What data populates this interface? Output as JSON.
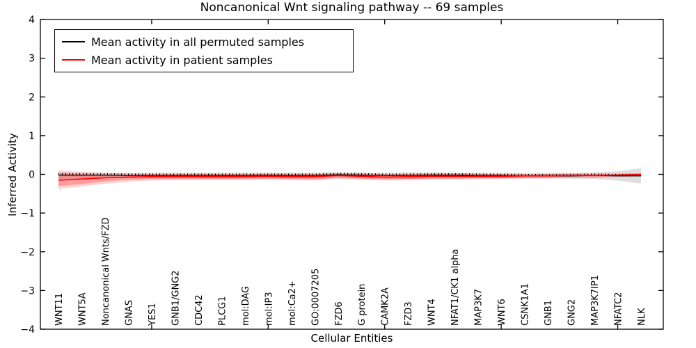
{
  "figure": {
    "title": "Noncanonical Wnt signaling pathway -- 69 samples",
    "xlabel": "Cellular Entities",
    "ylabel": "Inferred Activity"
  },
  "chart_data": {
    "type": "line",
    "title": "Noncanonical Wnt signaling pathway -- 69 samples",
    "xlabel": "Cellular Entities",
    "ylabel": "Inferred Activity",
    "ylim": [
      -4,
      4
    ],
    "yticks": [
      4,
      3,
      2,
      1,
      0,
      -1,
      -2,
      -3,
      -4
    ],
    "x_major_tick_indices": [
      4,
      9,
      14,
      19,
      24
    ],
    "grid": false,
    "legend_position": "upper left",
    "categories": [
      "WNT11",
      "WNT5A",
      "Noncanonical Wnts/FZD",
      "GNAS",
      "YES1",
      "GNB1/GNG2",
      "CDC42",
      "PLCG1",
      "mol:DAG",
      "mol:IP3",
      "mol:Ca2+",
      "GO:0007205",
      "FZD6",
      "G protein",
      "CAMK2A",
      "FZD3",
      "WNT4",
      "NFAT1/CK1 alpha",
      "MAP3K7",
      "WNT6",
      "CSNK1A1",
      "GNB1",
      "GNG2",
      "MAP3K7IP1",
      "NFATC2",
      "NLK"
    ],
    "series": [
      {
        "name": "Mean activity in all permuted samples",
        "color": "#000000",
        "values": [
          -0.02,
          -0.02,
          -0.02,
          -0.03,
          -0.03,
          -0.03,
          -0.03,
          -0.03,
          -0.03,
          -0.03,
          -0.03,
          -0.03,
          -0.01,
          -0.02,
          -0.03,
          -0.03,
          -0.02,
          -0.02,
          -0.03,
          -0.03,
          -0.04,
          -0.04,
          -0.04,
          -0.03,
          -0.04,
          -0.04
        ]
      },
      {
        "name": "Mean activity in patient samples",
        "color": "#ff0000",
        "values": [
          -0.15,
          -0.12,
          -0.09,
          -0.07,
          -0.06,
          -0.06,
          -0.06,
          -0.06,
          -0.06,
          -0.05,
          -0.06,
          -0.06,
          -0.03,
          -0.05,
          -0.07,
          -0.06,
          -0.05,
          -0.05,
          -0.05,
          -0.05,
          -0.04,
          -0.04,
          -0.03,
          -0.03,
          -0.02,
          0.0
        ]
      }
    ],
    "bands": [
      {
        "name": "permuted-band",
        "color": "#999999",
        "opacity": 0.32,
        "upper": [
          0.05,
          0.04,
          0.04,
          0.04,
          0.04,
          0.04,
          0.04,
          0.04,
          0.04,
          0.04,
          0.04,
          0.04,
          0.05,
          0.05,
          0.04,
          0.05,
          0.05,
          0.04,
          0.04,
          0.03,
          0.03,
          0.04,
          0.04,
          0.05,
          0.08,
          0.16
        ],
        "lower": [
          -0.11,
          -0.1,
          -0.09,
          -0.09,
          -0.09,
          -0.09,
          -0.09,
          -0.1,
          -0.09,
          -0.1,
          -0.1,
          -0.1,
          -0.09,
          -0.1,
          -0.11,
          -0.12,
          -0.1,
          -0.09,
          -0.1,
          -0.1,
          -0.1,
          -0.11,
          -0.11,
          -0.12,
          -0.16,
          -0.24
        ]
      },
      {
        "name": "patient-band-outer",
        "color": "#ff0000",
        "opacity": 0.18,
        "upper": [
          0.1,
          0.06,
          0.03,
          0.02,
          0.02,
          0.02,
          0.02,
          0.02,
          0.02,
          0.03,
          0.02,
          0.02,
          0.04,
          0.03,
          0.01,
          0.02,
          0.03,
          0.03,
          0.02,
          0.02,
          0.01,
          0.01,
          0.02,
          0.02,
          0.02,
          0.03
        ],
        "lower": [
          -0.38,
          -0.31,
          -0.24,
          -0.19,
          -0.16,
          -0.15,
          -0.15,
          -0.15,
          -0.15,
          -0.14,
          -0.15,
          -0.16,
          -0.12,
          -0.14,
          -0.16,
          -0.15,
          -0.14,
          -0.14,
          -0.13,
          -0.12,
          -0.11,
          -0.1,
          -0.09,
          -0.09,
          -0.07,
          -0.05
        ]
      },
      {
        "name": "patient-band-inner",
        "color": "#ff0000",
        "opacity": 0.25,
        "upper": [
          0.02,
          0.0,
          -0.01,
          -0.01,
          0.0,
          0.0,
          0.0,
          0.0,
          0.0,
          0.01,
          0.0,
          0.0,
          0.02,
          0.01,
          -0.01,
          0.0,
          0.01,
          0.01,
          0.0,
          0.0,
          0.0,
          0.0,
          0.01,
          0.01,
          0.01,
          0.02
        ],
        "lower": [
          -0.3,
          -0.25,
          -0.18,
          -0.14,
          -0.12,
          -0.12,
          -0.12,
          -0.12,
          -0.12,
          -0.11,
          -0.12,
          -0.13,
          -0.09,
          -0.11,
          -0.13,
          -0.12,
          -0.11,
          -0.11,
          -0.1,
          -0.1,
          -0.09,
          -0.08,
          -0.07,
          -0.07,
          -0.05,
          -0.03
        ]
      }
    ]
  }
}
